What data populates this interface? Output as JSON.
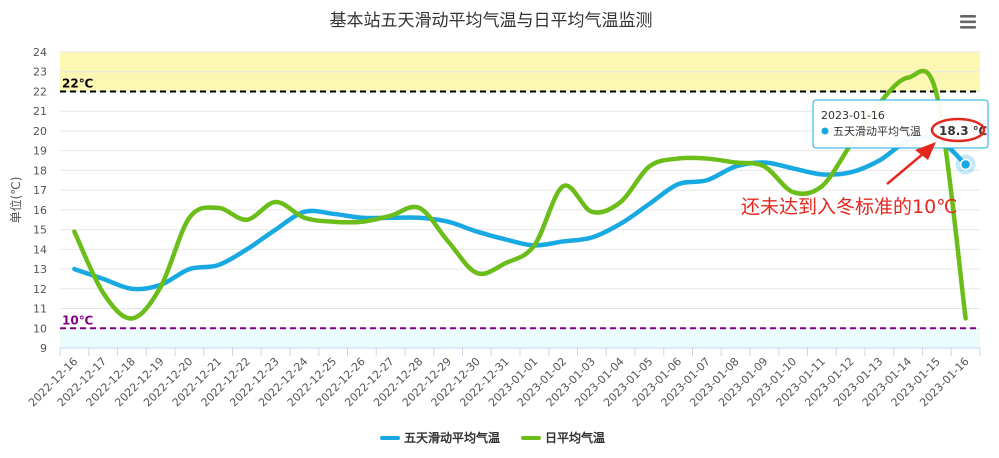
{
  "chart_data": {
    "type": "line",
    "title": "基本站五天滑动平均气温与日平均气温监测",
    "ylabel": "单位(℃)",
    "xlabel": "",
    "ylim": [
      9,
      24
    ],
    "yticks": [
      9,
      10,
      11,
      12,
      13,
      14,
      15,
      16,
      17,
      18,
      19,
      20,
      21,
      22,
      23,
      24
    ],
    "categories": [
      "2022-12-16",
      "2022-12-17",
      "2022-12-18",
      "2022-12-19",
      "2022-12-20",
      "2022-12-21",
      "2022-12-22",
      "2022-12-23",
      "2022-12-24",
      "2022-12-25",
      "2022-12-26",
      "2022-12-27",
      "2022-12-28",
      "2022-12-29",
      "2022-12-30",
      "2022-12-31",
      "2023-01-01",
      "2023-01-02",
      "2023-01-03",
      "2023-01-04",
      "2023-01-05",
      "2023-01-06",
      "2023-01-07",
      "2023-01-08",
      "2023-01-09",
      "2023-01-10",
      "2023-01-11",
      "2023-01-12",
      "2023-01-13",
      "2023-01-14",
      "2023-01-15",
      "2023-01-16"
    ],
    "series": [
      {
        "name": "五天滑动平均气温",
        "color": "#19a9e2",
        "values": [
          13.0,
          12.5,
          12.0,
          12.2,
          13.0,
          13.2,
          14.0,
          15.0,
          15.9,
          15.8,
          15.6,
          15.6,
          15.6,
          15.4,
          14.9,
          14.5,
          14.2,
          14.4,
          14.6,
          15.3,
          16.3,
          17.3,
          17.5,
          18.2,
          18.4,
          18.1,
          17.8,
          17.9,
          18.5,
          19.5,
          19.6,
          18.3
        ]
      },
      {
        "name": "日平均气温",
        "color": "#6bbd1a",
        "values": [
          14.9,
          11.8,
          10.5,
          12.1,
          15.6,
          16.1,
          15.5,
          16.4,
          15.6,
          15.4,
          15.4,
          15.7,
          16.1,
          14.4,
          12.8,
          13.3,
          14.2,
          17.2,
          15.9,
          16.4,
          18.2,
          18.6,
          18.6,
          18.4,
          18.2,
          16.9,
          17.2,
          19.3,
          21.4,
          22.7,
          21.8,
          10.5
        ]
      }
    ],
    "plot_bands": [
      {
        "from": 22,
        "to": 24,
        "color": "#fdf7b4"
      },
      {
        "from": 9,
        "to": 10,
        "color": "#eafcfc"
      }
    ],
    "plot_lines": [
      {
        "value": 22,
        "label": "22℃",
        "color": "#000000",
        "dash": "dashed"
      },
      {
        "value": 10,
        "label": "10℃",
        "color": "#800080",
        "dash": "dashed"
      }
    ],
    "tooltip": {
      "date": "2023-01-16",
      "series": "五天滑动平均气温",
      "value": "18.3 ℃"
    },
    "annotation": "还未达到入冬标准的10℃",
    "legend_position": "bottom-center",
    "grid": true
  },
  "menu_icon": "hamburger-menu-icon"
}
